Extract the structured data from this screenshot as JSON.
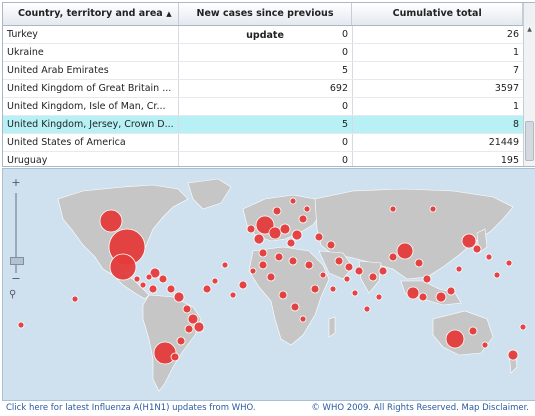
{
  "table": {
    "headers": {
      "country": "Country, territory and area",
      "new_cases": "New cases since previous update",
      "cumulative": "Cumulative total"
    },
    "sort_indicator": "▲",
    "rows": [
      {
        "country": "Turkey",
        "new_cases": "0",
        "cumulative": "26"
      },
      {
        "country": "Ukraine",
        "new_cases": "0",
        "cumulative": "1"
      },
      {
        "country": "United Arab Emirates",
        "new_cases": "5",
        "cumulative": "7"
      },
      {
        "country": "United Kingdom of Great Britain ...",
        "new_cases": "692",
        "cumulative": "3597"
      },
      {
        "country": "United Kingdom, Isle of Man, Cr...",
        "new_cases": "0",
        "cumulative": "1"
      },
      {
        "country": "United Kingdom, Jersey, Crown D...",
        "new_cases": "5",
        "cumulative": "8",
        "selected": true
      },
      {
        "country": "United States of America",
        "new_cases": "0",
        "cumulative": "21449"
      },
      {
        "country": "Uruguay",
        "new_cases": "0",
        "cumulative": "195"
      }
    ]
  },
  "map": {
    "zoom_in": "+",
    "zoom_out": "−",
    "pan_icon": "⚲",
    "colors": {
      "ocean": "#cfe1ef",
      "land": "#c6c6c6",
      "marker": "#e53b3b"
    }
  },
  "footer": {
    "left_link": "Click here for latest Influenza A(H1N1) updates from WHO.",
    "right_text": "© WHO 2009. All Rights Reserved. Map Disclaimer."
  }
}
